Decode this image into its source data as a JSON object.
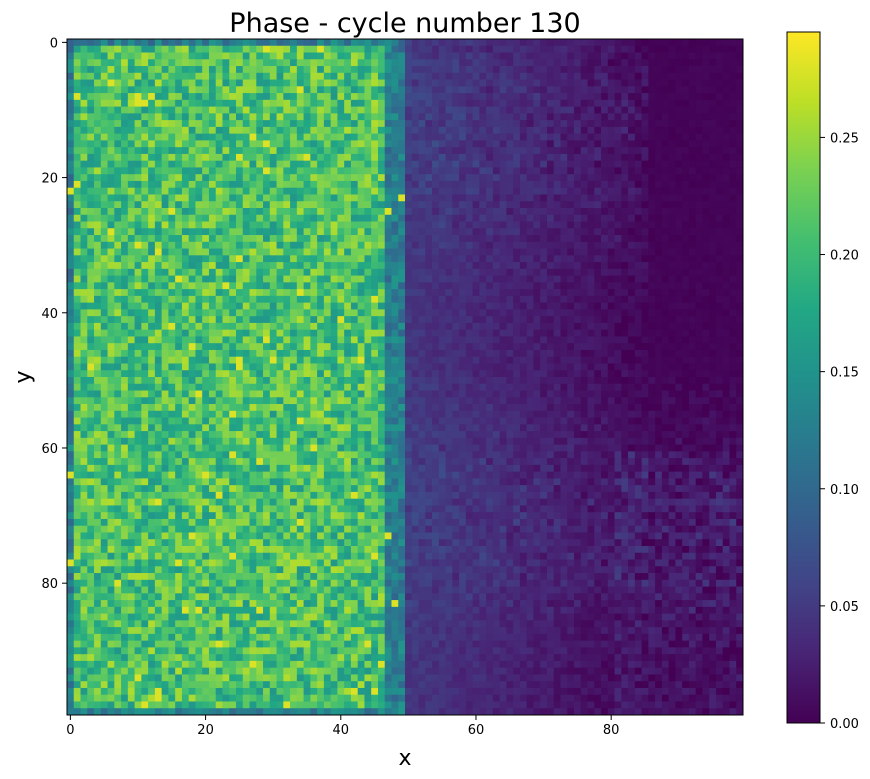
{
  "chart_data": {
    "type": "heatmap",
    "title": "Phase - cycle number 130",
    "xlabel": "x",
    "ylabel": "y",
    "x_range": [
      0,
      99
    ],
    "y_range": [
      0,
      99
    ],
    "y_inverted": true,
    "x_ticks": [
      "0",
      "20",
      "40",
      "60",
      "80"
    ],
    "y_ticks": [
      "0",
      "20",
      "40",
      "60",
      "80"
    ],
    "colormap": "viridis",
    "colorbar": {
      "min": 0.0,
      "max": 0.295,
      "ticks": [
        "0.00",
        "0.05",
        "0.10",
        "0.15",
        "0.20",
        "0.25"
      ]
    },
    "grid_size": [
      100,
      100
    ],
    "value_summary": {
      "left_half_columns": [
        0,
        49
      ],
      "left_half_typical_range": [
        0.13,
        0.29
      ],
      "right_half_columns": [
        50,
        99
      ],
      "right_half_typical_range": [
        0.0,
        0.08
      ],
      "max_value_approx": 0.295
    }
  }
}
